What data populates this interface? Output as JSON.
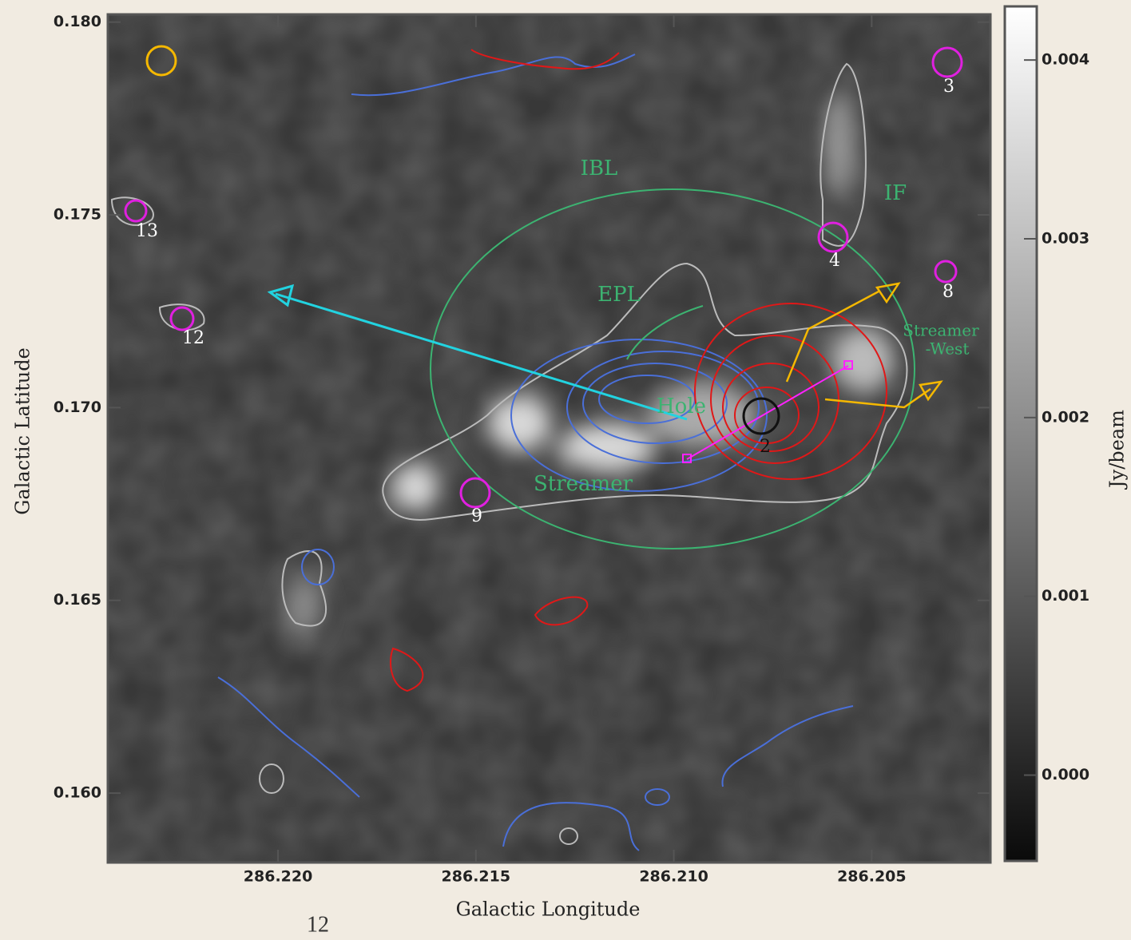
{
  "chart_data": {
    "type": "image",
    "x_label": "Galactic Longitude",
    "y_label": "Galactic Latitude",
    "xlim": [
      286.2243,
      286.202
    ],
    "xticks": [
      {
        "value": 286.22,
        "label": "286.220"
      },
      {
        "value": 286.215,
        "label": "286.215"
      },
      {
        "value": 286.21,
        "label": "286.210"
      },
      {
        "value": 286.205,
        "label": "286.205"
      }
    ],
    "ylim": [
      0.1582,
      0.1802
    ],
    "yticks": [
      {
        "value": 0.16,
        "label": "0.160"
      },
      {
        "value": 0.165,
        "label": "0.165"
      },
      {
        "value": 0.17,
        "label": "0.170"
      },
      {
        "value": 0.175,
        "label": "0.175"
      },
      {
        "value": 0.18,
        "label": "0.180"
      }
    ],
    "colorbar": {
      "label": "Jy/beam",
      "lim": [
        -0.00048,
        0.0043
      ],
      "ticks": [
        {
          "value": 0,
          "label": "0.000"
        },
        {
          "value": 0.001,
          "label": "0.001"
        },
        {
          "value": 0.002,
          "label": "0.002"
        },
        {
          "value": 0.003,
          "label": "0.003"
        },
        {
          "value": 0.004,
          "label": "0.004"
        }
      ]
    },
    "annotations": [
      "IBL",
      "IF",
      "EPL",
      "Hole",
      "Streamer",
      "Streamer",
      "-West"
    ],
    "source_labels": [
      "13",
      "12",
      "9",
      "4",
      "8",
      "3",
      "2"
    ],
    "page_number": "12"
  }
}
